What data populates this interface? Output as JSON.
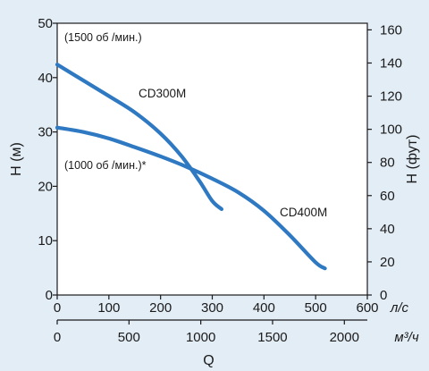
{
  "chart_data": {
    "type": "line",
    "title": "",
    "left_axis": {
      "label": "H (м)",
      "range": [
        0,
        50
      ],
      "ticks": [
        0,
        10,
        20,
        30,
        40,
        50
      ]
    },
    "right_axis": {
      "label": "H (фут)",
      "range": [
        0,
        164
      ],
      "ticks": [
        0,
        20,
        40,
        60,
        80,
        100,
        120,
        140,
        160
      ]
    },
    "bottom_axis_primary": {
      "unit": "л/с",
      "range": [
        0,
        600
      ],
      "ticks": [
        0,
        100,
        200,
        300,
        400,
        500,
        600
      ]
    },
    "bottom_axis_secondary": {
      "unit": "м³/ч",
      "range": [
        0,
        2160
      ],
      "ticks": [
        0,
        500,
        1000,
        1500,
        2000
      ]
    },
    "xlabel": "Q",
    "grid": false,
    "series": [
      {
        "name": "CD300M",
        "x": [
          0,
          50,
          100,
          150,
          200,
          240,
          275,
          300,
          318
        ],
        "y": [
          42.4,
          39.5,
          36.6,
          33.6,
          29.7,
          25.6,
          21.0,
          17.3,
          15.8
        ]
      },
      {
        "name": "CD400M",
        "x": [
          0,
          50,
          100,
          150,
          200,
          250,
          300,
          350,
          400,
          450,
          500,
          518
        ],
        "y": [
          30.8,
          30.0,
          28.8,
          27.2,
          25.5,
          23.6,
          21.4,
          18.9,
          15.5,
          11.0,
          6.0,
          4.9
        ]
      }
    ],
    "annotations": [
      "(1500 об /мин.)",
      "(1000 об /мин.)*"
    ]
  }
}
